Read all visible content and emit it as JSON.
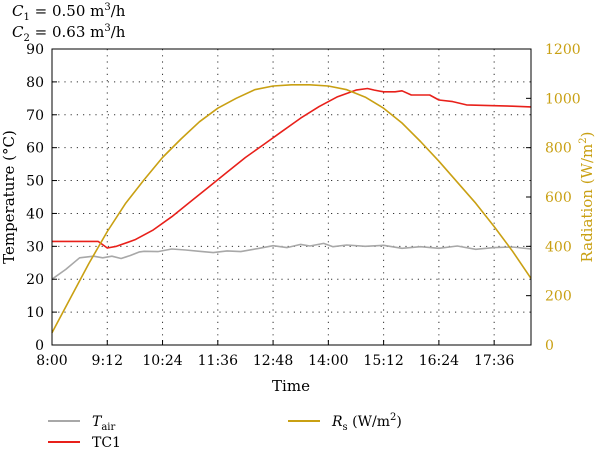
{
  "chart_data": {
    "type": "line",
    "annotations": [
      {
        "symbol": "C",
        "sub": "1",
        "text": " = 0.50 m",
        "sup": "3",
        "unit": "/h"
      },
      {
        "symbol": "C",
        "sub": "2",
        "text": " = 0.63 m",
        "sup": "3",
        "unit": "/h"
      }
    ],
    "xlabel": "Time",
    "ylabel": "Temperature (°C)",
    "y2label_pre": "Radiation (W/m",
    "y2label_sup": "2",
    "y2label_post": ")",
    "x_ticks": [
      "8:00",
      "9:12",
      "10:24",
      "11:36",
      "12:48",
      "14:00",
      "15:12",
      "16:24",
      "17:36"
    ],
    "y_ticks": [
      "0",
      "10",
      "20",
      "30",
      "40",
      "50",
      "60",
      "70",
      "80",
      "90"
    ],
    "y2_ticks": [
      "0",
      "200",
      "400",
      "600",
      "800",
      "1000",
      "1200"
    ],
    "xlim_hours": [
      8,
      18.4
    ],
    "ylim": [
      0,
      90
    ],
    "y2lim": [
      0,
      1200
    ],
    "grid": true,
    "legend_placement": "bottom",
    "series": [
      {
        "name": "T_air",
        "label_main": "T",
        "label_sub": "air",
        "axis": "left",
        "color": "#a8a8a8",
        "x_hours": [
          8.0,
          8.3,
          8.6,
          8.9,
          9.1,
          9.3,
          9.5,
          9.7,
          9.9,
          10.0,
          10.3,
          10.6,
          10.9,
          11.2,
          11.5,
          11.8,
          12.1,
          12.5,
          12.8,
          13.1,
          13.4,
          13.6,
          13.9,
          14.1,
          14.4,
          14.8,
          15.2,
          15.6,
          16.0,
          16.4,
          16.8,
          17.2,
          17.6,
          18.0,
          18.4
        ],
        "values": [
          20,
          23,
          26.5,
          27,
          26.5,
          27,
          26.3,
          27.2,
          28.3,
          28.5,
          28.4,
          29.2,
          28.9,
          28.5,
          28.1,
          28.6,
          28.4,
          29.4,
          30.2,
          29.6,
          30.6,
          30.1,
          30.9,
          29.9,
          30.4,
          30.0,
          30.3,
          29.4,
          29.9,
          29.4,
          30.1,
          29.1,
          29.6,
          29.8,
          29.2
        ]
      },
      {
        "name": "TC1",
        "label_main": "TC1",
        "label_sub": "",
        "axis": "left",
        "color": "#e8201a",
        "x_hours": [
          8.0,
          8.5,
          9.0,
          9.2,
          9.4,
          9.8,
          10.2,
          10.6,
          11.0,
          11.4,
          11.8,
          12.2,
          12.6,
          13.0,
          13.4,
          13.8,
          14.2,
          14.6,
          14.85,
          15.0,
          15.2,
          15.45,
          15.6,
          15.8,
          16.2,
          16.4,
          16.7,
          17.0,
          17.5,
          18.0,
          18.4
        ],
        "values": [
          31.5,
          31.5,
          31.5,
          29.5,
          30,
          32,
          35,
          39,
          43.5,
          48,
          52.5,
          57,
          61,
          65,
          69,
          72.5,
          75.5,
          77.5,
          78,
          77.5,
          77,
          77,
          77.3,
          76,
          76,
          74.5,
          74,
          73,
          72.8,
          72.6,
          72.4
        ]
      },
      {
        "name": "R_s (W/m²)",
        "label_main": "R",
        "label_sub": "s",
        "label_post": " (W/m",
        "label_sup": "2",
        "label_end": ")",
        "axis": "right",
        "color": "#c9a013",
        "x_hours": [
          8.0,
          8.4,
          8.8,
          9.2,
          9.6,
          10.0,
          10.4,
          10.8,
          11.2,
          11.6,
          12.0,
          12.4,
          12.8,
          13.2,
          13.6,
          14.0,
          14.4,
          14.8,
          15.2,
          15.6,
          16.0,
          16.4,
          16.8,
          17.2,
          17.6,
          18.0,
          18.4
        ],
        "values": [
          50,
          190,
          330,
          460,
          575,
          670,
          760,
          835,
          905,
          960,
          1000,
          1035,
          1050,
          1055,
          1055,
          1050,
          1035,
          1005,
          960,
          900,
          825,
          745,
          660,
          575,
          480,
          380,
          270
        ]
      }
    ]
  }
}
